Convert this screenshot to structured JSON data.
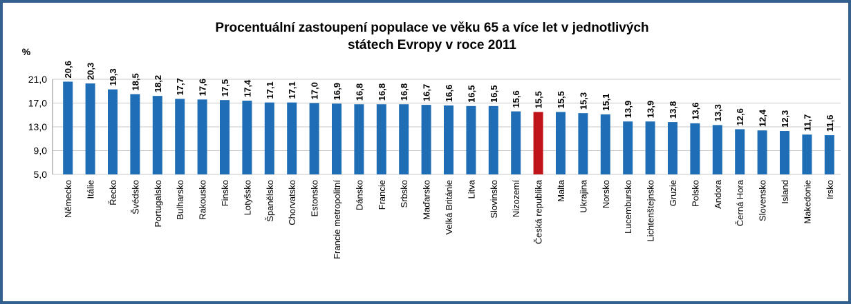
{
  "chart_data": {
    "type": "bar",
    "title": [
      "Procentuální zastoupení populace ve věku 65 a více let v jednotlivých",
      "státech Evropy v roce 2011"
    ],
    "y_label": "%",
    "categories": [
      "Německo",
      "Itálie",
      "Řecko",
      "Švédsko",
      "Portugalsko",
      "Bulharsko",
      "Rakousko",
      "Finsko",
      "Lotyšsko",
      "Španělsko",
      "Chorvatsko",
      "Estonsko",
      "Francie metropolitní",
      "Dánsko",
      "Francie",
      "Srbsko",
      "Maďarsko",
      "Velká Británie",
      "Litva",
      "Slovinsko",
      "Nizozemí",
      "Česká republika",
      "Malta",
      "Ukrajina",
      "Norsko",
      "Lucembursko",
      "Lichtenštejnsko",
      "Gruzie",
      "Polsko",
      "Andora",
      "Černá Hora",
      "Slovensko",
      "Island",
      "Makedonie",
      "Irsko"
    ],
    "values": [
      20.6,
      20.3,
      19.3,
      18.5,
      18.2,
      17.7,
      17.6,
      17.5,
      17.4,
      17.1,
      17.1,
      17.0,
      16.9,
      16.8,
      16.8,
      16.8,
      16.7,
      16.6,
      16.5,
      16.5,
      15.6,
      15.5,
      15.5,
      15.3,
      15.1,
      13.9,
      13.9,
      13.8,
      13.6,
      13.3,
      12.6,
      12.4,
      12.3,
      11.7,
      11.6
    ],
    "value_labels": [
      "20,6",
      "20,3",
      "19,3",
      "18,5",
      "18,2",
      "17,7",
      "17,6",
      "17,5",
      "17,4",
      "17,1",
      "17,1",
      "17,0",
      "16,9",
      "16,8",
      "16,8",
      "16,8",
      "16,7",
      "16,6",
      "16,5",
      "16,5",
      "15,6",
      "15,5",
      "15,5",
      "15,3",
      "15,1",
      "13,9",
      "13,9",
      "13,8",
      "13,6",
      "13,3",
      "12,6",
      "12,4",
      "12,3",
      "11,7",
      "11,6"
    ],
    "colors": [
      "#1f6db4",
      "#1f6db4",
      "#1f6db4",
      "#1f6db4",
      "#1f6db4",
      "#1f6db4",
      "#1f6db4",
      "#1f6db4",
      "#1f6db4",
      "#1f6db4",
      "#1f6db4",
      "#1f6db4",
      "#1f6db4",
      "#1f6db4",
      "#1f6db4",
      "#1f6db4",
      "#1f6db4",
      "#1f6db4",
      "#1f6db4",
      "#1f6db4",
      "#1f6db4",
      "#c0141b",
      "#1f6db4",
      "#1f6db4",
      "#1f6db4",
      "#1f6db4",
      "#1f6db4",
      "#1f6db4",
      "#1f6db4",
      "#1f6db4",
      "#1f6db4",
      "#1f6db4",
      "#1f6db4",
      "#1f6db4",
      "#1f6db4"
    ],
    "ylim": [
      5,
      21
    ],
    "yticks": [
      {
        "value": 5,
        "label": "5,0"
      },
      {
        "value": 9,
        "label": "9,0"
      },
      {
        "value": 13,
        "label": "13,0"
      },
      {
        "value": 17,
        "label": "17,0"
      },
      {
        "value": 21,
        "label": "21,0"
      }
    ],
    "grid": true
  }
}
